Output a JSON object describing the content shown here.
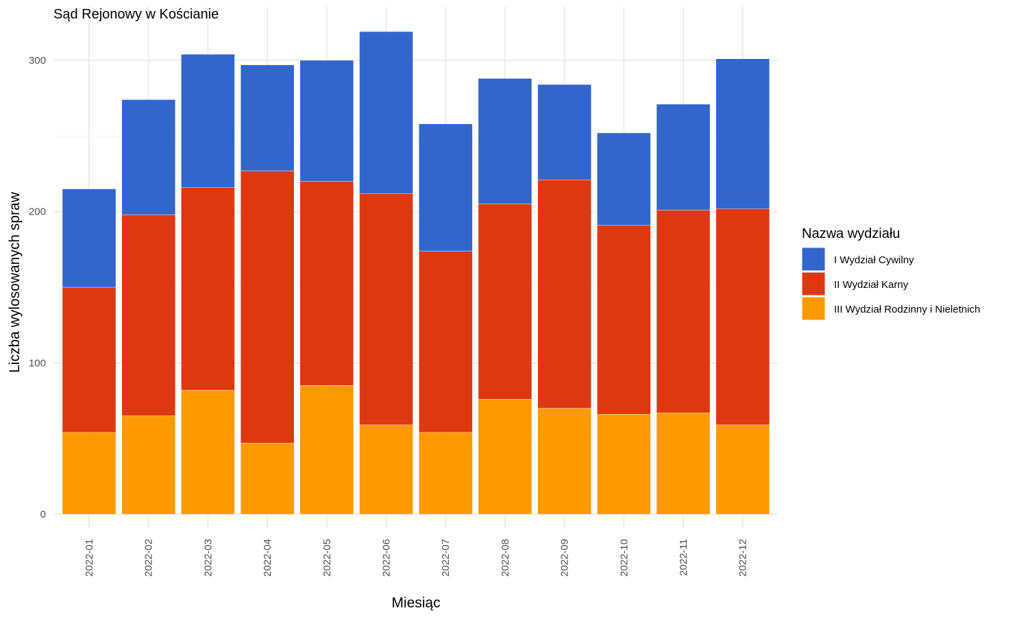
{
  "chart_data": {
    "type": "bar",
    "stacked": true,
    "title": "Sąd Rejonowy w Kościanie",
    "xlabel": "Miesiąc",
    "ylabel": "Liczba wylosowanych spraw",
    "ylim": [
      0,
      330
    ],
    "yticks": [
      0,
      100,
      200,
      300
    ],
    "grid": true,
    "legend_position": "right",
    "legend_title": "Nazwa wydziału",
    "categories": [
      "2022-01",
      "2022-02",
      "2022-03",
      "2022-04",
      "2022-05",
      "2022-06",
      "2022-07",
      "2022-08",
      "2022-09",
      "2022-10",
      "2022-11",
      "2022-12"
    ],
    "series": [
      {
        "name": "III Wydział Rodzinny i Nieletnich",
        "color": "#FF9900",
        "values": [
          54,
          65,
          82,
          47,
          85,
          59,
          54,
          76,
          70,
          66,
          67,
          59
        ]
      },
      {
        "name": "II Wydział Karny",
        "color": "#DC3912",
        "values": [
          96,
          133,
          134,
          180,
          135,
          153,
          120,
          129,
          151,
          125,
          134,
          143
        ]
      },
      {
        "name": "I Wydział Cywilny",
        "color": "#3366CC",
        "values": [
          65,
          76,
          88,
          70,
          80,
          107,
          84,
          83,
          63,
          61,
          70,
          99
        ]
      }
    ],
    "legend_order": [
      "I Wydział Cywilny",
      "II Wydział Karny",
      "III Wydział Rodzinny i Nieletnich"
    ]
  }
}
